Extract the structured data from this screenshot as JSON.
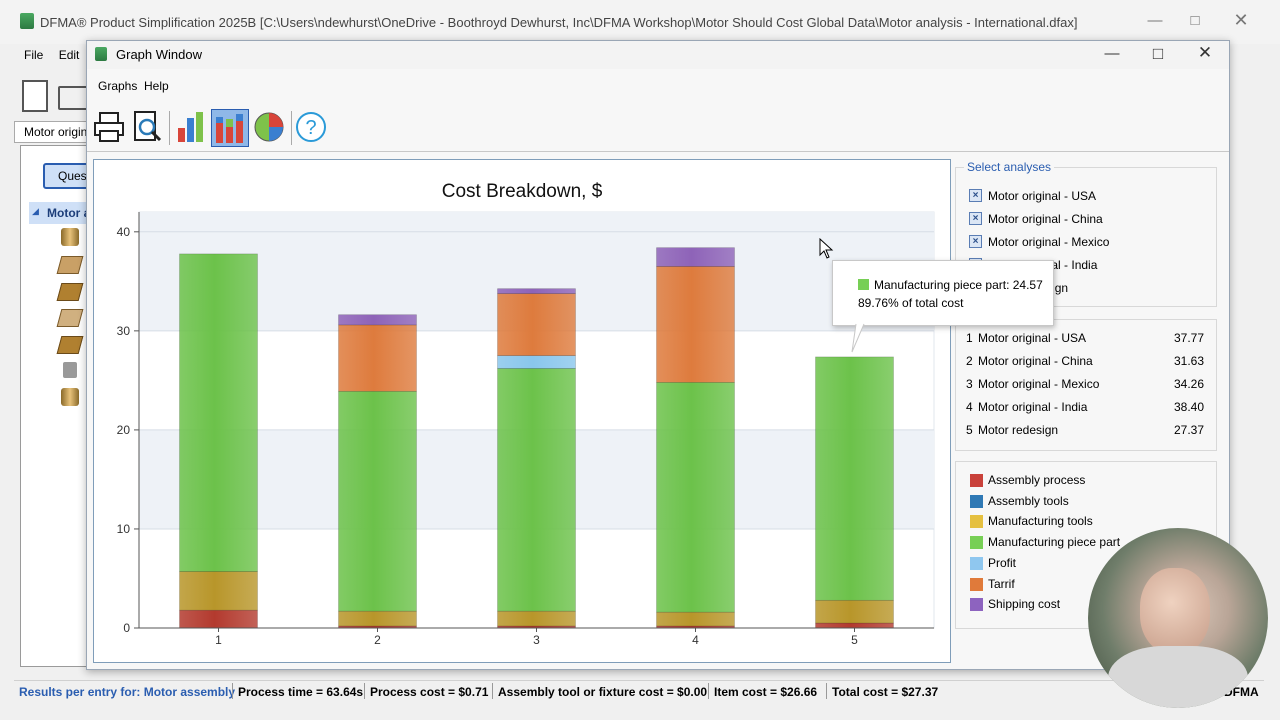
{
  "app": {
    "title": "DFMA® Product Simplification 2025B [C:\\Users\\ndewhurst\\OneDrive - Boothroyd Dewhurst, Inc\\DFMA Workshop\\Motor Should Cost Global Data\\Motor analysis - International.dfax]",
    "menu": [
      "File",
      "Edit"
    ],
    "tab_label": "Motor origina",
    "tree_button": "Quest",
    "tree_root": "Motor a",
    "brand": "DFMA"
  },
  "graph_window": {
    "title": "Graph Window",
    "menu": [
      "Graphs",
      "Help"
    ]
  },
  "chart_data": {
    "type": "bar",
    "stacked": true,
    "title": "Cost Breakdown, $",
    "xlabel": "",
    "ylabel": "",
    "categories": [
      "1",
      "2",
      "3",
      "4",
      "5"
    ],
    "ylim": [
      0,
      42
    ],
    "yticks": [
      0,
      10,
      20,
      30,
      40
    ],
    "grid": true,
    "series": [
      {
        "name": "Assembly process",
        "color": "#b33a2e",
        "values": [
          1.8,
          0.2,
          0.2,
          0.2,
          0.5
        ]
      },
      {
        "name": "Assembly tools",
        "color": "#2f79b5",
        "values": [
          0,
          0,
          0,
          0,
          0
        ]
      },
      {
        "name": "Manufacturing tools",
        "color": "#b8962a",
        "values": [
          3.9,
          1.5,
          1.5,
          1.4,
          2.3
        ]
      },
      {
        "name": "Manufacturing piece part",
        "color": "#6cc24a",
        "values": [
          32.07,
          22.2,
          24.5,
          23.2,
          24.57
        ]
      },
      {
        "name": "Profit",
        "color": "#89c6ec",
        "values": [
          0,
          0,
          1.3,
          0,
          0
        ]
      },
      {
        "name": "Tarrif",
        "color": "#de7b3d",
        "values": [
          0,
          6.7,
          6.26,
          11.7,
          0
        ]
      },
      {
        "name": "Shipping cost",
        "color": "#8e63b8",
        "values": [
          0,
          1.03,
          0.5,
          1.9,
          0
        ]
      }
    ]
  },
  "tooltip": {
    "series": "Manufacturing piece part: 24.57",
    "percent": "89.76% of total cost"
  },
  "select_analyses": {
    "legend": "Select analyses",
    "items": [
      {
        "label": "Motor original - USA",
        "checked": true
      },
      {
        "label": "Motor original - China",
        "checked": true
      },
      {
        "label": "Motor original - Mexico",
        "checked": true
      },
      {
        "label": "Motor original - India",
        "checked": true
      },
      {
        "label": "Motor redesign",
        "checked": true
      }
    ],
    "visible_label_4": "gn"
  },
  "totals": [
    {
      "num": "1",
      "label": "Motor original - USA",
      "value": "37.77"
    },
    {
      "num": "2",
      "label": "Motor original - China",
      "value": "31.63"
    },
    {
      "num": "3",
      "label": "Motor original - Mexico",
      "value": "34.26"
    },
    {
      "num": "4",
      "label": "Motor original - India",
      "value": "38.40"
    },
    {
      "num": "5",
      "label": "Motor redesign",
      "value": "27.37"
    }
  ],
  "legend_items": [
    {
      "label": "Assembly process",
      "color": "#c9413a"
    },
    {
      "label": "Assembly tools",
      "color": "#2f79b5"
    },
    {
      "label": "Manufacturing tools",
      "color": "#e5c040"
    },
    {
      "label": "Manufacturing piece part",
      "color": "#77cf55"
    },
    {
      "label": "Profit",
      "color": "#8fc7ef"
    },
    {
      "label": "Tarrif",
      "color": "#e07a3a"
    },
    {
      "label": "Shipping cost",
      "color": "#8d63bf"
    }
  ],
  "status": {
    "prefix": "Results per entry for: Motor assembly",
    "process_time": "Process time = 63.64s",
    "process_cost": "Process cost = $0.71",
    "tool_cost": "Assembly tool or fixture cost = $0.00",
    "item_cost": "Item cost = $26.66",
    "total_cost": "Total cost = $27.37"
  }
}
